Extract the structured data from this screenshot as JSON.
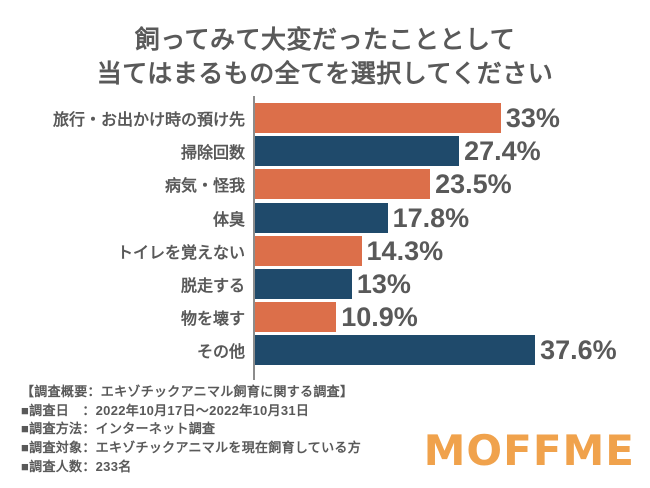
{
  "title": {
    "line1": "飼ってみて大変だったこととして",
    "line2": "当てはまるもの全てを選択してください"
  },
  "chart_data": {
    "type": "bar",
    "orientation": "horizontal",
    "title": "飼ってみて大変だったこととして当てはまるもの全てを選択してください",
    "categories": [
      "旅行・お出かけ時の預け先",
      "掃除回数",
      "病気・怪我",
      "体臭",
      "トイレを覚えない",
      "脱走する",
      "物を壊す",
      "その他"
    ],
    "values": [
      33,
      27.4,
      23.5,
      17.8,
      14.3,
      13,
      10.9,
      37.6
    ],
    "value_labels": [
      "33%",
      "27.4%",
      "23.5%",
      "17.8%",
      "14.3%",
      "13%",
      "10.9%",
      "37.6%"
    ],
    "bar_colors": [
      "#DC6F4A",
      "#1F4A6B",
      "#DC6F4A",
      "#1F4A6B",
      "#DC6F4A",
      "#1F4A6B",
      "#DC6F4A",
      "#1F4A6B"
    ],
    "xlabel": "",
    "ylabel": "",
    "xlim": [
      0,
      42
    ],
    "grid": false,
    "legend_position": "none"
  },
  "survey_info": {
    "lines": [
      "【調査概要：エキゾチックアニマル飼育に関する調査】",
      "■調査日　：2022年10月17日〜2022年10月31日",
      "■調査方法：インターネット調査",
      "■調査対象：エキゾチックアニマルを現在飼育している方",
      "■調査人数：233名"
    ]
  },
  "logo": {
    "text": "MOFFME",
    "color": "#F0A24C"
  },
  "colors": {
    "bar_orange": "#DC6F4A",
    "bar_navy": "#1F4A6B",
    "text_gray": "#595959",
    "axis_gray": "#8C8C8C",
    "background": "#FFFFFF"
  }
}
